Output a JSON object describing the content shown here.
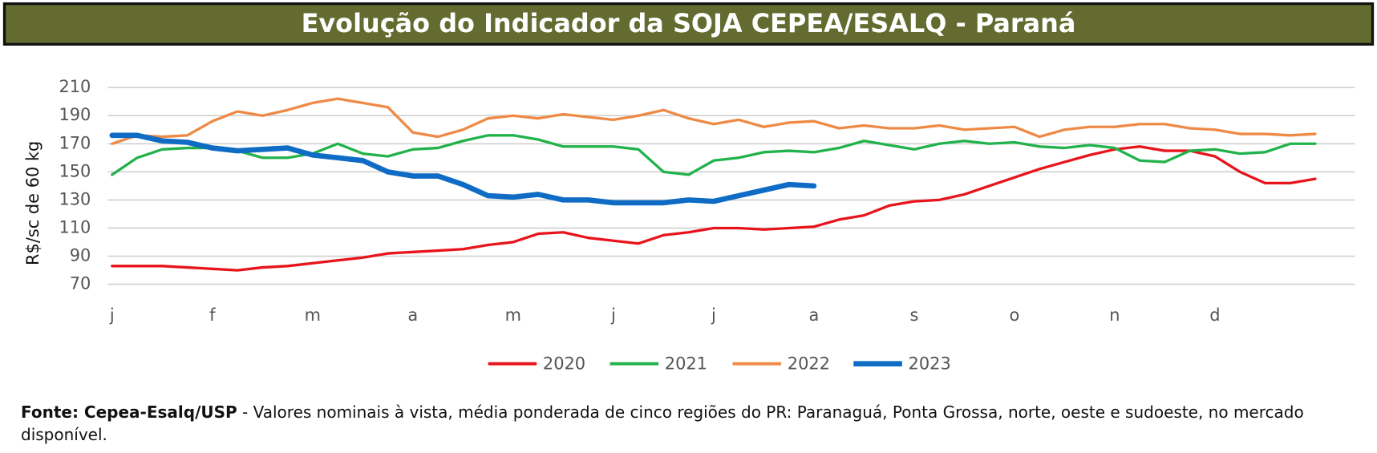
{
  "chart_data": {
    "type": "line",
    "title": "Evolução do Indicador da SOJA CEPEA/ESALQ - Paraná",
    "y_label": "R$/sc de 60 kg",
    "categories": [
      "j",
      null,
      null,
      null,
      "f",
      null,
      null,
      null,
      "m",
      null,
      null,
      null,
      "a",
      null,
      null,
      null,
      "m",
      null,
      null,
      null,
      "j",
      null,
      null,
      null,
      "j",
      null,
      null,
      null,
      "a",
      null,
      null,
      null,
      "s",
      null,
      null,
      null,
      "o",
      null,
      null,
      null,
      "n",
      null,
      null,
      null,
      "d",
      null,
      null,
      null,
      null
    ],
    "ylim": [
      70,
      210
    ],
    "yticks": [
      70,
      90,
      110,
      130,
      150,
      170,
      190,
      210
    ],
    "grid": true,
    "legend": "bottom",
    "series": [
      {
        "name": "2020",
        "color": "#e8141b",
        "values": [
          83,
          83,
          83,
          82,
          81,
          80,
          82,
          83,
          85,
          87,
          89,
          92,
          93,
          94,
          95,
          98,
          100,
          106,
          107,
          103,
          101,
          99,
          105,
          107,
          110,
          110,
          109,
          110,
          111,
          116,
          119,
          126,
          129,
          130,
          134,
          140,
          146,
          152,
          157,
          162,
          166,
          168,
          165,
          165,
          161,
          150,
          142,
          142,
          145
        ]
      },
      {
        "name": "2021",
        "color": "#21b24b",
        "values": [
          148,
          160,
          166,
          167,
          167,
          165,
          160,
          160,
          163,
          170,
          163,
          161,
          166,
          167,
          172,
          176,
          176,
          173,
          168,
          168,
          168,
          166,
          150,
          148,
          158,
          160,
          164,
          165,
          164,
          167,
          172,
          169,
          166,
          170,
          172,
          170,
          171,
          168,
          167,
          169,
          167,
          158,
          157,
          165,
          166,
          163,
          164,
          170,
          170
        ]
      },
      {
        "name": "2022",
        "color": "#ee8a45",
        "values": [
          170,
          176,
          175,
          176,
          186,
          193,
          190,
          194,
          199,
          202,
          199,
          196,
          178,
          175,
          180,
          188,
          190,
          188,
          191,
          189,
          187,
          190,
          194,
          188,
          184,
          187,
          182,
          185,
          186,
          181,
          183,
          181,
          181,
          183,
          180,
          181,
          182,
          175,
          180,
          182,
          182,
          184,
          184,
          181,
          180,
          177,
          177,
          176,
          177
        ]
      },
      {
        "name": "2023",
        "color": "#0e6cc4",
        "values": [
          176,
          176,
          172,
          171,
          167,
          165,
          166,
          167,
          162,
          160,
          158,
          150,
          147,
          147,
          141,
          133,
          132,
          134,
          130,
          130,
          128,
          128,
          128,
          130,
          129,
          133,
          137,
          141,
          140,
          null,
          null,
          null,
          null,
          null,
          null,
          null,
          null,
          null,
          null,
          null,
          null,
          null,
          null,
          null,
          null,
          null,
          null,
          null,
          null
        ]
      }
    ],
    "source": "Fonte: Cepea-Esalq/USP",
    "note": " - Valores nominais à vista, média ponderada de cinco regiões do PR: Paranaguá, Ponta Grossa, norte, oeste e sudoeste, no mercado disponível."
  }
}
